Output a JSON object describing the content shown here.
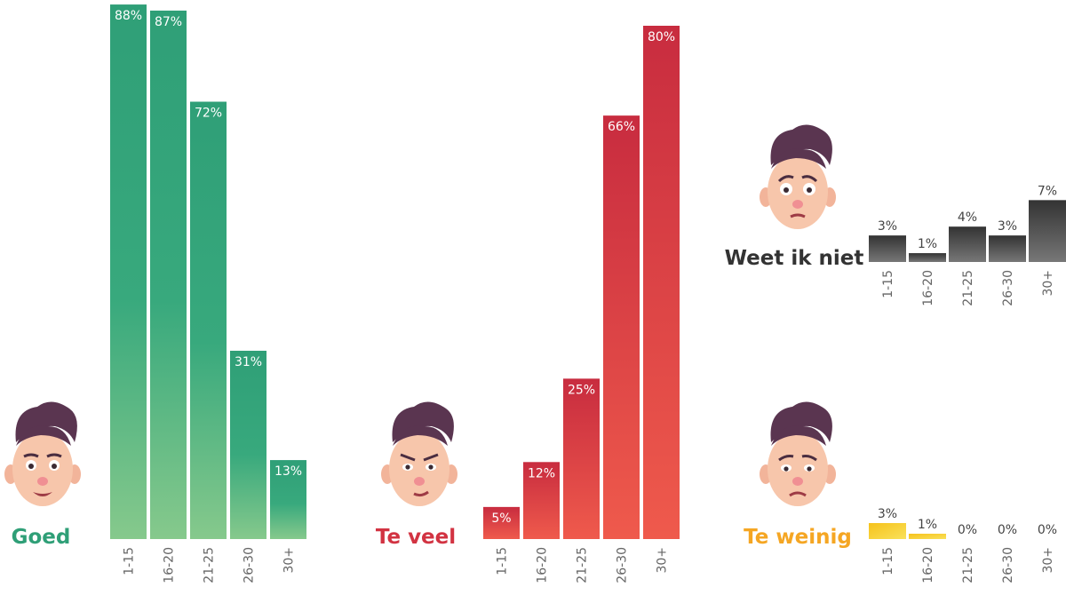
{
  "chart_data": [
    {
      "type": "bar",
      "title": "Goed",
      "categories": [
        "1-15",
        "16-20",
        "21-25",
        "26-30",
        "30+"
      ],
      "values": [
        88,
        87,
        72,
        31,
        13
      ],
      "value_labels": [
        "88%",
        "87%",
        "72%",
        "31%",
        "13%"
      ],
      "ylim": [
        0,
        100
      ],
      "grid": false,
      "color": "#32a37c",
      "face": "smiling-face-icon"
    },
    {
      "type": "bar",
      "title": "Te veel",
      "categories": [
        "1-15",
        "16-20",
        "21-25",
        "26-30",
        "30+"
      ],
      "values": [
        5,
        12,
        25,
        66,
        80
      ],
      "value_labels": [
        "5%",
        "12%",
        "25%",
        "66%",
        "80%"
      ],
      "ylim": [
        0,
        100
      ],
      "grid": false,
      "color": "#d23342",
      "face": "annoyed-face-icon"
    },
    {
      "type": "bar",
      "title": "Weet ik niet",
      "categories": [
        "1-15",
        "16-20",
        "21-25",
        "26-30",
        "30+"
      ],
      "values": [
        3,
        1,
        4,
        3,
        7
      ],
      "value_labels": [
        "3%",
        "1%",
        "4%",
        "3%",
        "7%"
      ],
      "ylim": [
        0,
        100
      ],
      "grid": false,
      "color": "#555555",
      "face": "worried-face-icon"
    },
    {
      "type": "bar",
      "title": "Te weinig",
      "categories": [
        "1-15",
        "16-20",
        "21-25",
        "26-30",
        "30+"
      ],
      "values": [
        3,
        1,
        0,
        0,
        0
      ],
      "value_labels": [
        "3%",
        "1%",
        "0%",
        "0%",
        "0%"
      ],
      "ylim": [
        0,
        100
      ],
      "grid": false,
      "color": "#f5a623",
      "face": "sad-face-icon"
    }
  ]
}
